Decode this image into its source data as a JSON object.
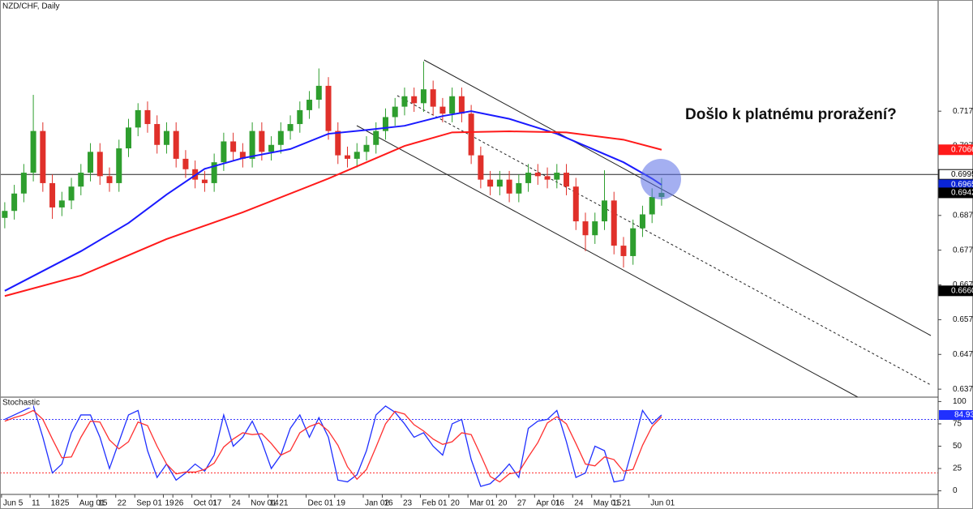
{
  "chart_data": [
    {
      "type": "candlestick",
      "title": "NZD/CHF, Daily",
      "annotation": "Došlo k platnému proražení?",
      "categories": [
        "Jun 5",
        null,
        null,
        "11",
        null,
        "18",
        "25",
        null,
        "Aug 01",
        null,
        "15",
        null,
        "22",
        null,
        "Sep 01",
        null,
        null,
        "19",
        "26",
        null,
        "Oct 01",
        null,
        "17",
        null,
        "24",
        null,
        "Nov 01",
        null,
        "14",
        "21",
        null,
        null,
        "Dec 01",
        null,
        null,
        "19",
        null,
        null,
        "Jan 02",
        null,
        "16",
        null,
        "23",
        null,
        "Feb 01",
        null,
        null,
        "20",
        null,
        "Mar 01",
        null,
        null,
        "20",
        null,
        "27",
        null,
        "Apr 01",
        null,
        "16",
        null,
        "24",
        null,
        "May 01",
        null,
        "15",
        "21",
        null,
        null,
        "Jun 01",
        null
      ],
      "open": [
        0.687,
        0.689,
        0.694,
        0.7,
        0.712,
        0.697,
        0.69,
        0.692,
        0.696,
        0.7,
        0.706,
        0.699,
        0.697,
        0.707,
        0.713,
        0.718,
        0.714,
        0.708,
        0.712,
        0.704,
        0.701,
        0.698,
        0.697,
        0.703,
        0.709,
        0.706,
        0.704,
        0.712,
        0.706,
        0.708,
        0.712,
        0.714,
        0.718,
        0.721,
        0.725,
        0.712,
        0.705,
        0.704,
        0.706,
        0.708,
        0.712,
        0.716,
        0.719,
        0.722,
        0.72,
        0.724,
        0.719,
        0.717,
        0.722,
        0.717,
        0.705,
        0.698,
        0.696,
        0.698,
        0.694,
        0.697,
        0.7,
        0.699,
        0.698,
        0.7,
        0.696,
        0.686,
        0.682,
        0.686,
        0.692,
        0.679,
        0.676,
        0.684,
        0.688,
        0.693
      ],
      "high": [
        0.6915,
        0.6965,
        0.7025,
        0.7224,
        0.7145,
        0.6995,
        0.6945,
        0.6985,
        0.7025,
        0.7085,
        0.7085,
        0.7015,
        0.7095,
        0.7155,
        0.72,
        0.7205,
        0.7165,
        0.7145,
        0.7145,
        0.7065,
        0.7035,
        0.7005,
        0.7055,
        0.7115,
        0.7115,
        0.7085,
        0.7145,
        0.7145,
        0.7105,
        0.7145,
        0.7165,
        0.7205,
        0.7235,
        0.73,
        0.7275,
        0.7145,
        0.7075,
        0.7085,
        0.7105,
        0.7145,
        0.7185,
        0.7215,
        0.7245,
        0.7245,
        0.732,
        0.7265,
        0.7215,
        0.7245,
        0.7245,
        0.7195,
        0.7075,
        0.7005,
        0.7005,
        0.7005,
        0.6995,
        0.7025,
        0.7025,
        0.7015,
        0.7025,
        0.7025,
        0.6985,
        0.6885,
        0.6885,
        0.7007,
        0.6945,
        0.6815,
        0.6865,
        0.6905,
        0.6955,
        0.6985
      ],
      "low": [
        0.684,
        0.6865,
        0.6915,
        0.6975,
        0.6945,
        0.6867,
        0.6875,
        0.6895,
        0.6935,
        0.6975,
        0.6965,
        0.6945,
        0.6945,
        0.7045,
        0.7105,
        0.7115,
        0.7055,
        0.7055,
        0.7015,
        0.6985,
        0.6955,
        0.6945,
        0.6945,
        0.7005,
        0.7035,
        0.7015,
        0.7015,
        0.7035,
        0.7035,
        0.7055,
        0.7095,
        0.7115,
        0.7155,
        0.7185,
        0.7095,
        0.7025,
        0.7015,
        0.7015,
        0.7035,
        0.7055,
        0.7095,
        0.7135,
        0.7165,
        0.7175,
        0.7175,
        0.7165,
        0.7145,
        0.7145,
        0.7145,
        0.7025,
        0.6955,
        0.6935,
        0.6935,
        0.6915,
        0.6915,
        0.6945,
        0.6965,
        0.6955,
        0.6955,
        0.6935,
        0.6835,
        0.6774,
        0.6795,
        0.6835,
        0.6765,
        0.6727,
        0.6735,
        0.6815,
        0.6855,
        0.6905
      ],
      "close": [
        0.689,
        0.694,
        0.7,
        0.712,
        0.697,
        0.69,
        0.692,
        0.696,
        0.7,
        0.706,
        0.699,
        0.697,
        0.707,
        0.713,
        0.718,
        0.714,
        0.708,
        0.712,
        0.704,
        0.701,
        0.698,
        0.697,
        0.703,
        0.709,
        0.706,
        0.704,
        0.712,
        0.706,
        0.708,
        0.712,
        0.714,
        0.718,
        0.721,
        0.725,
        0.712,
        0.705,
        0.704,
        0.706,
        0.708,
        0.712,
        0.716,
        0.719,
        0.722,
        0.72,
        0.724,
        0.719,
        0.717,
        0.722,
        0.717,
        0.705,
        0.698,
        0.696,
        0.698,
        0.694,
        0.697,
        0.7,
        0.699,
        0.698,
        0.7,
        0.696,
        0.686,
        0.682,
        0.686,
        0.692,
        0.679,
        0.676,
        0.684,
        0.688,
        0.693,
        0.6942
      ],
      "up_color": "#2e9e2e",
      "down_color": "#e0302a",
      "series": [
        {
          "color": "#1a1aff",
          "x": [
            0,
            8,
            13,
            17,
            21,
            25,
            30,
            34,
            38,
            42,
            46,
            49,
            53,
            58,
            61,
            65,
            68,
            69
          ],
          "values": [
            0.666,
            0.6774,
            0.6855,
            0.6937,
            0.7011,
            0.7042,
            0.7068,
            0.7112,
            0.7123,
            0.7135,
            0.7163,
            0.7177,
            0.7155,
            0.7112,
            0.7077,
            0.703,
            0.6983,
            0.6965
          ]
        },
        {
          "color": "#ff1a1a",
          "x": [
            0,
            8,
            17,
            25,
            34,
            38,
            42,
            47,
            53,
            59,
            65,
            69
          ],
          "values": [
            0.6645,
            0.6704,
            0.6809,
            0.6886,
            0.6983,
            0.703,
            0.7077,
            0.7116,
            0.7119,
            0.7116,
            0.7095,
            0.7066
          ]
        }
      ],
      "hline": 0.6995,
      "price_markers": [
        {
          "value": 0.7066,
          "color": "#ff1a1a",
          "text_color": "#ffffff"
        },
        {
          "value": 0.6995,
          "color": "#ffffff",
          "text_color": "#000000"
        },
        {
          "value": 0.6965,
          "color": "#0a24d6",
          "text_color": "#ffffff"
        },
        {
          "value": 0.6942,
          "color": "#000000",
          "text_color": "#ffffff"
        },
        {
          "value": 0.666,
          "label": "0.6660",
          "color": "#000000",
          "text_color": "#ffffff"
        }
      ],
      "ylim": [
        0.6354,
        0.7497
      ],
      "yticks": [
        0.6377,
        0.6477,
        0.6577,
        0.6677,
        0.6777,
        0.6877,
        0.7077,
        0.7177
      ]
    },
    {
      "type": "line",
      "title": "Stochastic",
      "series": [
        {
          "color": "#2030ff",
          "values": [
            80,
            85,
            90,
            95,
            60,
            20,
            30,
            65,
            85,
            85,
            60,
            25,
            55,
            85,
            90,
            45,
            15,
            30,
            12,
            20,
            30,
            22,
            40,
            85,
            50,
            60,
            78,
            55,
            25,
            40,
            70,
            85,
            60,
            82,
            60,
            12,
            10,
            18,
            45,
            85,
            95,
            88,
            75,
            60,
            65,
            50,
            40,
            75,
            80,
            35,
            5,
            8,
            18,
            30,
            15,
            70,
            78,
            80,
            90,
            55,
            15,
            20,
            50,
            45,
            10,
            12,
            50,
            90,
            75,
            84.93
          ]
        },
        {
          "color": "#ff3030",
          "values": [
            78,
            82,
            85,
            90,
            80,
            58,
            37,
            38,
            60,
            78,
            77,
            57,
            47,
            55,
            77,
            73,
            50,
            30,
            19,
            21,
            21,
            24,
            31,
            49,
            58,
            65,
            63,
            64,
            53,
            40,
            45,
            65,
            72,
            76,
            67,
            51,
            27,
            13,
            24,
            49,
            75,
            89,
            86,
            74,
            67,
            58,
            52,
            55,
            65,
            63,
            40,
            16,
            10,
            19,
            21,
            38,
            54,
            76,
            83,
            75,
            53,
            30,
            28,
            38,
            35,
            22,
            24,
            51,
            72,
            83
          ]
        }
      ],
      "levels": [
        {
          "value": 80,
          "color": "#3a3aff"
        },
        {
          "value": 20,
          "color": "#ff3030"
        }
      ],
      "ylim": [
        -4,
        104
      ],
      "yticks": [
        0,
        25,
        50,
        75,
        100
      ]
    }
  ]
}
